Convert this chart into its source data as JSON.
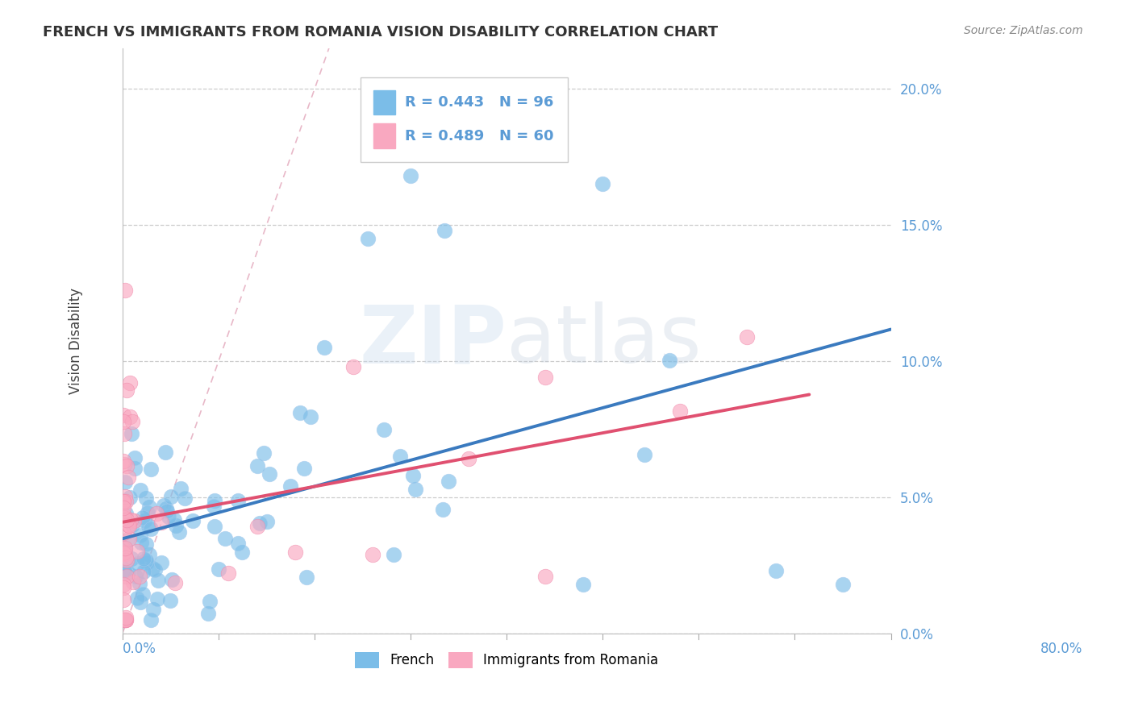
{
  "title": "FRENCH VS IMMIGRANTS FROM ROMANIA VISION DISABILITY CORRELATION CHART",
  "source": "Source: ZipAtlas.com",
  "ylabel": "Vision Disability",
  "xmin": 0.0,
  "xmax": 0.8,
  "ymin": 0.0,
  "ymax": 0.215,
  "yticks": [
    0.0,
    0.05,
    0.1,
    0.15,
    0.2
  ],
  "ytick_labels": [
    "0.0%",
    "5.0%",
    "10.0%",
    "15.0%",
    "20.0%"
  ],
  "legend_r_french": "R = 0.443",
  "legend_n_french": "N = 96",
  "legend_r_romania": "R = 0.489",
  "legend_n_romania": "N = 60",
  "french_color": "#7bbde8",
  "romania_color": "#f9a8c0",
  "french_line_color": "#3a7abf",
  "romania_line_color": "#e05070",
  "diag_line_color": "#e8b8c8",
  "background_color": "#ffffff",
  "watermark_zip": "ZIP",
  "watermark_atlas": "atlas",
  "title_fontsize": 13,
  "source_fontsize": 10,
  "tick_color": "#5b9bd5"
}
